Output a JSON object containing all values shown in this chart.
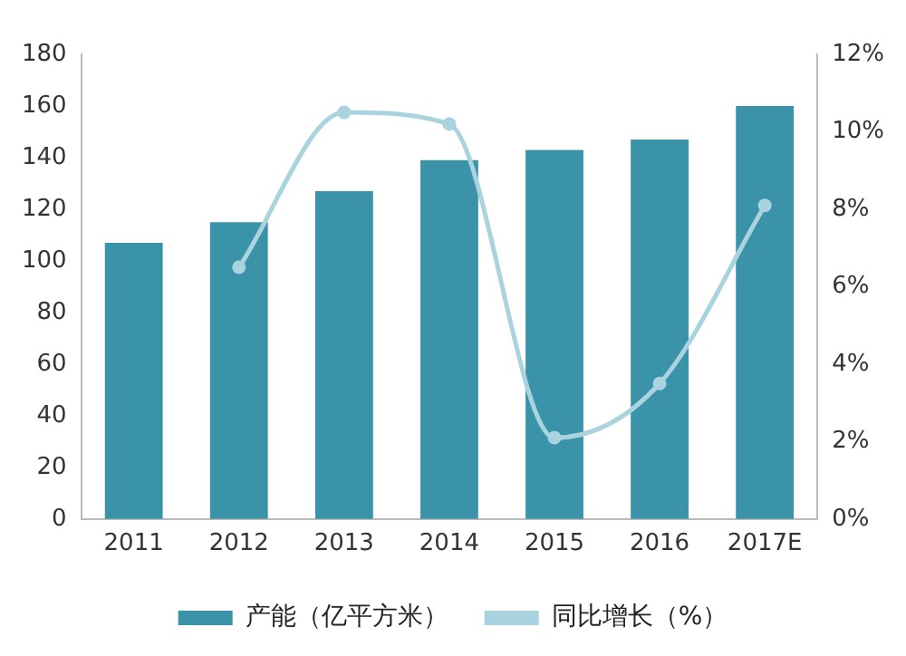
{
  "chart_data": {
    "type": "bar",
    "categories": [
      "2011",
      "2012",
      "2013",
      "2014",
      "2015",
      "2016",
      "2017E"
    ],
    "series": [
      {
        "name": "产能（亿平方米）",
        "color": "#3a93a8",
        "values": [
          107,
          115,
          127,
          139,
          143,
          147,
          160
        ]
      },
      {
        "name": "同比增长（%）",
        "type": "line",
        "axis": "y2",
        "color": "#a9d3df",
        "values": [
          null,
          6.5,
          10.5,
          10.2,
          2.1,
          3.5,
          8.1
        ]
      }
    ],
    "ylim": [
      0,
      180
    ],
    "yticks": [
      0,
      20,
      40,
      60,
      80,
      100,
      120,
      140,
      160,
      180
    ],
    "y2lim": [
      0,
      12
    ],
    "y2ticks": [
      {
        "value": 0,
        "label": "0%"
      },
      {
        "value": 2,
        "label": "2%"
      },
      {
        "value": 4,
        "label": "4%"
      },
      {
        "value": 6,
        "label": "6%"
      },
      {
        "value": 8,
        "label": "8%"
      },
      {
        "value": 10,
        "label": "10%"
      },
      {
        "value": 12,
        "label": "12%"
      }
    ],
    "grid": false,
    "legend": "bottom",
    "marker": "circle",
    "line_style": "solid"
  }
}
